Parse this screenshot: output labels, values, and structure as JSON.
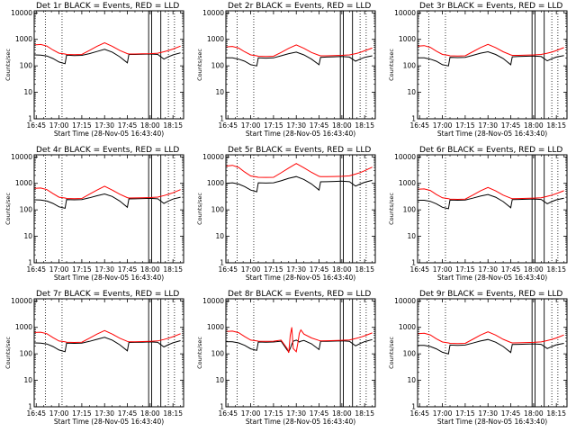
{
  "chart_data": {
    "type": "line",
    "layout": "3x3 grid",
    "y_scale": "log",
    "ylim": [
      1,
      12000
    ],
    "xlim": [
      "16:43:40",
      "18:22:00"
    ],
    "x_tick_labels": [
      "16:45",
      "17:00",
      "17:15",
      "17:30",
      "17:45",
      "18:00",
      "18:15"
    ],
    "y_tick_labels": [
      "1",
      "10",
      "100",
      "1000",
      "10000"
    ],
    "y_ticks": [
      1,
      10,
      100,
      1000,
      10000
    ],
    "ylabel": "Counts/sec",
    "xlabel": "Start Time (28-Nov-05 16:43:40)",
    "series_colors": {
      "events": "#000000",
      "lld": "#ff0000"
    },
    "dotted_markers": [
      "16:51",
      "17:02",
      "18:12",
      "18:16"
    ],
    "solid_markers": [
      "17:59",
      "18:01",
      "18:07"
    ],
    "panels": [
      {
        "title": "Det 1r BLACK = Events, RED = LLD",
        "x": [
          "16:44",
          "16:48",
          "16:52",
          "16:56",
          "17:00",
          "17:04",
          "17:05",
          "17:10",
          "17:15",
          "17:20",
          "17:25",
          "17:30",
          "17:35",
          "17:40",
          "17:45",
          "17:46",
          "17:50",
          "17:55",
          "18:00",
          "18:05",
          "18:09",
          "18:12",
          "18:15",
          "18:20"
        ],
        "series": [
          {
            "values": [
              260,
              255,
              235,
              190,
              140,
              120,
              255,
              245,
              250,
              290,
              350,
              420,
              330,
              220,
              130,
              270,
              270,
              275,
              280,
              270,
              180,
              220,
              260,
              310
            ]
          },
          {
            "values": [
              620,
              640,
              560,
              400,
              300,
              280,
              270,
              265,
              270,
              380,
              550,
              740,
              550,
              380,
              290,
              280,
              280,
              285,
              290,
              300,
              340,
              380,
              430,
              560
            ]
          }
        ]
      },
      {
        "title": "Det 2r BLACK = Events, RED = LLD",
        "x": [
          "16:44",
          "16:48",
          "16:52",
          "16:56",
          "17:00",
          "17:04",
          "17:05",
          "17:10",
          "17:15",
          "17:20",
          "17:25",
          "17:30",
          "17:35",
          "17:40",
          "17:45",
          "17:46",
          "17:50",
          "17:55",
          "18:00",
          "18:05",
          "18:09",
          "18:12",
          "18:15",
          "18:20"
        ],
        "series": [
          {
            "values": [
              200,
              200,
              180,
              150,
              110,
              100,
              200,
              195,
              200,
              240,
              290,
              330,
              260,
              180,
              110,
              210,
              215,
              220,
              225,
              215,
              150,
              180,
              210,
              240
            ]
          },
          {
            "values": [
              520,
              540,
              470,
              340,
              260,
              240,
              230,
              225,
              230,
              320,
              460,
              620,
              460,
              320,
              250,
              240,
              240,
              245,
              250,
              260,
              290,
              320,
              370,
              470
            ]
          }
        ]
      },
      {
        "title": "Det 3r BLACK = Events, RED = LLD",
        "x": [
          "16:44",
          "16:48",
          "16:52",
          "16:56",
          "17:00",
          "17:04",
          "17:05",
          "17:10",
          "17:15",
          "17:20",
          "17:25",
          "17:30",
          "17:35",
          "17:40",
          "17:45",
          "17:46",
          "17:50",
          "17:55",
          "18:00",
          "18:05",
          "18:09",
          "18:12",
          "18:15",
          "18:20"
        ],
        "series": [
          {
            "values": [
              200,
              200,
              180,
              150,
              110,
              100,
              210,
              205,
              210,
              250,
              300,
              340,
              270,
              190,
              110,
              220,
              225,
              230,
              235,
              225,
              155,
              185,
              215,
              245
            ]
          },
          {
            "values": [
              560,
              580,
              500,
              360,
              270,
              250,
              240,
              235,
              240,
              340,
              490,
              650,
              490,
              340,
              260,
              250,
              250,
              255,
              260,
              270,
              300,
              330,
              380,
              490
            ]
          }
        ]
      },
      {
        "title": "Det 4r BLACK = Events, RED = LLD",
        "x": [
          "16:44",
          "16:48",
          "16:52",
          "16:56",
          "17:00",
          "17:04",
          "17:05",
          "17:10",
          "17:15",
          "17:20",
          "17:25",
          "17:30",
          "17:35",
          "17:40",
          "17:45",
          "17:46",
          "17:50",
          "17:55",
          "18:00",
          "18:05",
          "18:09",
          "18:12",
          "18:15",
          "18:20"
        ],
        "series": [
          {
            "values": [
              240,
              235,
              215,
              175,
              130,
              115,
              245,
              240,
              245,
              285,
              340,
              400,
              320,
              215,
              125,
              260,
              262,
              268,
              272,
              262,
              175,
              215,
              255,
              300
            ]
          },
          {
            "values": [
              650,
              670,
              580,
              410,
              300,
              280,
              270,
              265,
              270,
              390,
              560,
              780,
              560,
              390,
              290,
              280,
              282,
              288,
              292,
              302,
              345,
              385,
              440,
              580
            ]
          }
        ]
      },
      {
        "title": "Det 5r BLACK = Events, RED = LLD",
        "x": [
          "16:44",
          "16:48",
          "16:52",
          "16:56",
          "17:00",
          "17:04",
          "17:05",
          "17:10",
          "17:15",
          "17:20",
          "17:25",
          "17:30",
          "17:35",
          "17:40",
          "17:45",
          "17:46",
          "17:50",
          "17:55",
          "18:00",
          "18:05",
          "18:09",
          "18:12",
          "18:15",
          "18:20"
        ],
        "series": [
          {
            "values": [
              1000,
              1050,
              940,
              760,
              560,
              480,
              1050,
              1030,
              1050,
              1250,
              1550,
              1800,
              1400,
              950,
              560,
              1150,
              1160,
              1180,
              1210,
              1160,
              790,
              940,
              1100,
              1300
            ]
          },
          {
            "values": [
              4500,
              4800,
              4000,
              2700,
              1900,
              1750,
              1700,
              1680,
              1700,
              2500,
              3800,
              5600,
              3900,
              2600,
              1850,
              1800,
              1800,
              1820,
              1850,
              1920,
              2250,
              2550,
              3000,
              4100
            ]
          }
        ]
      },
      {
        "title": "Det 6r BLACK = Events, RED = LLD",
        "x": [
          "16:44",
          "16:48",
          "16:52",
          "16:56",
          "17:00",
          "17:04",
          "17:05",
          "17:10",
          "17:15",
          "17:20",
          "17:25",
          "17:30",
          "17:35",
          "17:40",
          "17:45",
          "17:46",
          "17:50",
          "17:55",
          "18:00",
          "18:05",
          "18:09",
          "18:12",
          "18:15",
          "18:20"
        ],
        "series": [
          {
            "values": [
              230,
              230,
              210,
              170,
              125,
              110,
              235,
              230,
              235,
              275,
              330,
              380,
              300,
              205,
              120,
              245,
              248,
              252,
              258,
              248,
              170,
              205,
              240,
              275
            ]
          },
          {
            "values": [
              600,
              620,
              540,
              380,
              285,
              265,
              255,
              250,
              255,
              360,
              520,
              700,
              520,
              360,
              275,
              265,
              267,
              272,
              278,
              288,
              325,
              360,
              410,
              530
            ]
          }
        ]
      },
      {
        "title": "Det 7r BLACK = Events, RED = LLD",
        "x": [
          "16:44",
          "16:48",
          "16:52",
          "16:56",
          "17:00",
          "17:04",
          "17:05",
          "17:10",
          "17:15",
          "17:20",
          "17:25",
          "17:30",
          "17:35",
          "17:40",
          "17:45",
          "17:46",
          "17:50",
          "17:55",
          "18:00",
          "18:05",
          "18:09",
          "18:12",
          "18:15",
          "18:20"
        ],
        "series": [
          {
            "values": [
              260,
              255,
              235,
              190,
              140,
              120,
              255,
              250,
              255,
              295,
              355,
              420,
              330,
              220,
              130,
              270,
              272,
              276,
              282,
              272,
              182,
              222,
              262,
              315
            ]
          },
          {
            "values": [
              640,
              660,
              575,
              410,
              305,
              285,
              275,
              270,
              275,
              390,
              560,
              760,
              560,
              390,
              295,
              285,
              287,
              292,
              298,
              308,
              350,
              390,
              445,
              575
            ]
          }
        ]
      },
      {
        "title": "Det 8r BLACK = Events, RED = LLD",
        "x": [
          "16:44",
          "16:48",
          "16:52",
          "16:56",
          "17:00",
          "17:04",
          "17:05",
          "17:10",
          "17:15",
          "17:20",
          "17:24",
          "17:25",
          "17:26",
          "17:27",
          "17:28",
          "17:30",
          "17:31",
          "17:32",
          "17:33",
          "17:35",
          "17:40",
          "17:45",
          "17:46",
          "17:50",
          "17:55",
          "18:00",
          "18:05",
          "18:09",
          "18:12",
          "18:15",
          "18:20"
        ],
        "series": [
          {
            "values": [
              290,
              285,
              260,
              210,
              155,
              135,
              280,
              275,
              280,
              300,
              140,
              120,
              160,
              230,
              300,
              330,
              310,
              280,
              300,
              320,
              240,
              145,
              295,
              298,
              302,
              310,
              298,
              200,
              245,
              290,
              345
            ]
          },
          {
            "values": [
              700,
              720,
              630,
              450,
              330,
              310,
              300,
              295,
              300,
              330,
              160,
              110,
              500,
              1000,
              160,
              120,
              250,
              600,
              800,
              560,
              400,
              320,
              310,
              312,
              318,
              325,
              335,
              380,
              420,
              480,
              620
            ]
          }
        ]
      },
      {
        "title": "Det 9r BLACK = Events, RED = LLD",
        "x": [
          "16:44",
          "16:48",
          "16:52",
          "16:56",
          "17:00",
          "17:04",
          "17:05",
          "17:10",
          "17:15",
          "17:20",
          "17:25",
          "17:30",
          "17:35",
          "17:40",
          "17:45",
          "17:46",
          "17:50",
          "17:55",
          "18:00",
          "18:05",
          "18:09",
          "18:12",
          "18:15",
          "18:20"
        ],
        "series": [
          {
            "values": [
              210,
              210,
              190,
              155,
              115,
              100,
              215,
              210,
              215,
              255,
              305,
              350,
              275,
              190,
              112,
              225,
              228,
              232,
              238,
              228,
              158,
              188,
              220,
              250
            ]
          },
          {
            "values": [
              580,
              600,
              520,
              370,
              280,
              260,
              250,
              245,
              250,
              355,
              510,
              680,
              510,
              355,
              270,
              260,
              262,
              267,
              272,
              282,
              318,
              352,
              400,
              515
            ]
          }
        ]
      }
    ]
  }
}
